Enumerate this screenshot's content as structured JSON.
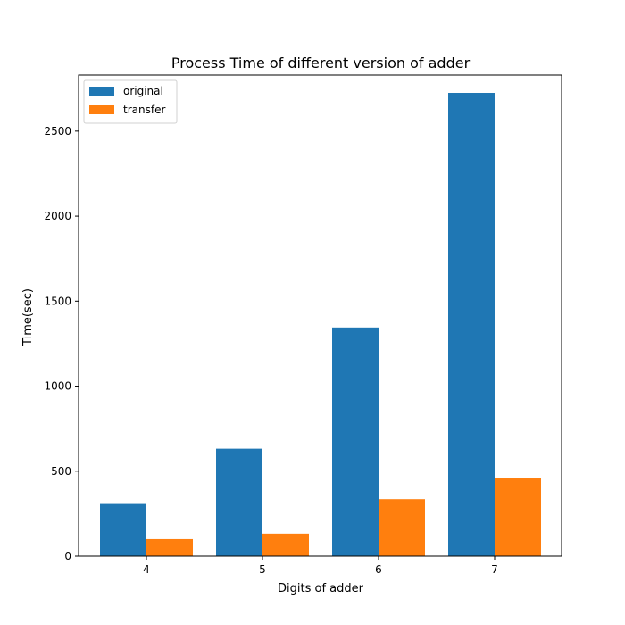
{
  "chart_data": {
    "type": "bar",
    "title": "Process Time of different version of adder",
    "xlabel": "Digits of adder",
    "ylabel": "Time(sec)",
    "categories": [
      "4",
      "5",
      "6",
      "7"
    ],
    "series": [
      {
        "name": "original",
        "color": "#1f77b4",
        "values": [
          312,
          632,
          1345,
          2725
        ]
      },
      {
        "name": "transfer",
        "color": "#ff7f0e",
        "values": [
          100,
          132,
          335,
          462
        ]
      }
    ],
    "ylim": [
      0,
      2830
    ],
    "yticks": [
      0,
      500,
      1000,
      1500,
      2000,
      2500
    ],
    "legend_position": "upper-left",
    "grid": false
  }
}
